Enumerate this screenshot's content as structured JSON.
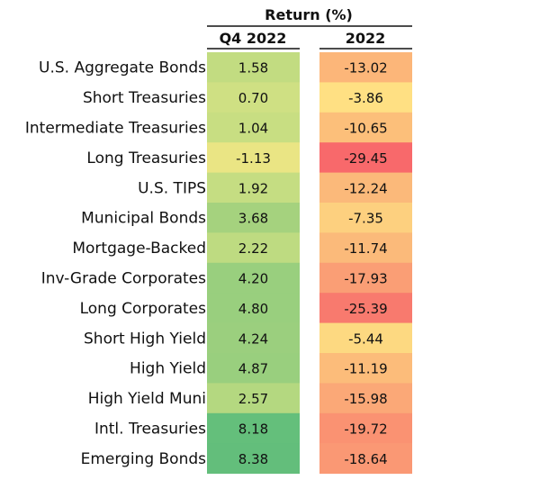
{
  "chart_data": {
    "type": "heatmap",
    "title": "Return (%)",
    "columns": [
      "Q4 2022",
      "2022"
    ],
    "rows": [
      "U.S. Aggregate Bonds",
      "Short Treasuries",
      "Intermediate Treasuries",
      "Long Treasuries",
      "U.S. TIPS",
      "Municipal Bonds",
      "Mortgage-Backed",
      "Inv-Grade Corporates",
      "Long Corporates",
      "Short High Yield",
      "High Yield",
      "High Yield Muni",
      "Intl. Treasuries",
      "Emerging Bonds"
    ],
    "series": [
      {
        "name": "Q4 2022",
        "values": [
          "1.58",
          "0.70",
          "1.04",
          "-1.13",
          "1.92",
          "3.68",
          "2.22",
          "4.20",
          "4.80",
          "4.24",
          "4.87",
          "2.57",
          "8.18",
          "8.38"
        ]
      },
      {
        "name": "2022",
        "values": [
          "-13.02",
          "-3.86",
          "-10.65",
          "-29.45",
          "-12.24",
          "-7.35",
          "-11.74",
          "-17.93",
          "-25.39",
          "-5.44",
          "-11.19",
          "-15.98",
          "-19.72",
          "-18.64"
        ]
      }
    ],
    "colors": {
      "q4": [
        "#c2dc81",
        "#cfe083",
        "#c8de82",
        "#eae584",
        "#c5dd82",
        "#a5d27e",
        "#bedb81",
        "#99cf7e",
        "#99cf7e",
        "#9bcf7e",
        "#99cf7e",
        "#b4d880",
        "#64bf7b",
        "#63be7b"
      ],
      "annual": [
        "#fcb679",
        "#ffe083",
        "#fcbf7a",
        "#f8696b",
        "#fbb97a",
        "#fdd07f",
        "#fbba7a",
        "#fa9e75",
        "#f87a6e",
        "#fdd981",
        "#fcbc7a",
        "#fba877",
        "#fa9272",
        "#fa9874"
      ]
    }
  }
}
